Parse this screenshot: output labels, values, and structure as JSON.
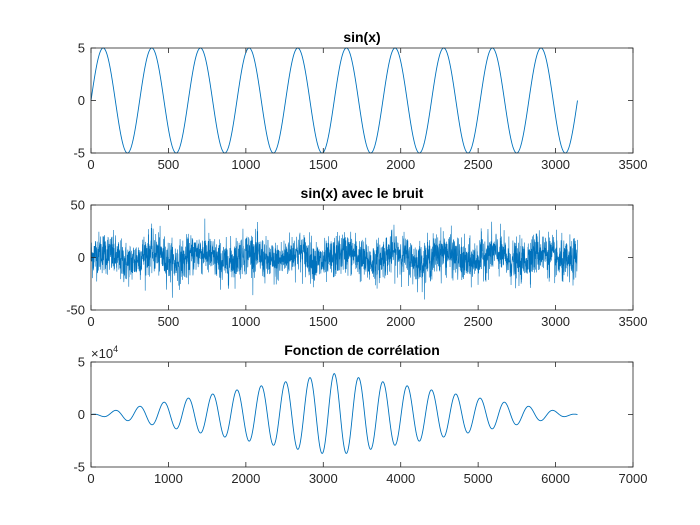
{
  "figure": {
    "background": "#ffffff",
    "axes_color": "#262626",
    "line_color": "#0072BD"
  },
  "chart_data": [
    {
      "type": "line",
      "title": "sin(x)",
      "xlabel": "",
      "ylabel": "",
      "xlim": [
        0,
        3500
      ],
      "ylim": [
        -5,
        5
      ],
      "xticks": [
        0,
        500,
        1000,
        1500,
        2000,
        2500,
        3000,
        3500
      ],
      "yticks": [
        -5,
        0,
        5
      ],
      "xtick_labels": [
        "0",
        "500",
        "1000",
        "1500",
        "2000",
        "2500",
        "3000",
        "3500"
      ],
      "ytick_labels": [
        "-5",
        "0",
        "5"
      ],
      "grid": false,
      "series": [
        {
          "kind": "sine",
          "amplitude": 5,
          "period": 314.16,
          "x_start": 0,
          "x_end": 3141.6,
          "sampled_points": 3142
        }
      ]
    },
    {
      "type": "line",
      "title": "sin(x) avec le bruit",
      "xlabel": "",
      "ylabel": "",
      "xlim": [
        0,
        3500
      ],
      "ylim": [
        -50,
        50
      ],
      "xticks": [
        0,
        500,
        1000,
        1500,
        2000,
        2500,
        3000,
        3500
      ],
      "yticks": [
        -50,
        0,
        50
      ],
      "xtick_labels": [
        "0",
        "500",
        "1000",
        "1500",
        "2000",
        "2500",
        "3000",
        "3500"
      ],
      "ytick_labels": [
        "-50",
        "0",
        "50"
      ],
      "grid": false,
      "series": [
        {
          "kind": "noisy-sine",
          "amplitude": 5,
          "period": 314.16,
          "noise_std": 10,
          "x_start": 0,
          "x_end": 3141.6,
          "sampled_points": 3142,
          "observed_range": [
            -40,
            45
          ]
        }
      ]
    },
    {
      "type": "line",
      "title": "Fonction de corrélation",
      "xlabel": "",
      "ylabel": "",
      "xlim": [
        0,
        7000
      ],
      "ylim": [
        -50000,
        50000
      ],
      "xticks": [
        0,
        1000,
        2000,
        3000,
        4000,
        5000,
        6000,
        7000
      ],
      "yticks": [
        -50000,
        0,
        50000
      ],
      "xtick_labels": [
        "0",
        "1000",
        "2000",
        "3000",
        "4000",
        "5000",
        "6000",
        "7000"
      ],
      "ytick_labels": [
        "-5",
        "0",
        "5"
      ],
      "y_exponent_base": "×10",
      "y_exponent_power": "4",
      "grid": false,
      "series": [
        {
          "kind": "autocorrelation",
          "x_start": 0,
          "x_end": 6283,
          "center": 3141.5,
          "period": 314.16,
          "peak_value": 39000,
          "peak_min": -37000
        }
      ]
    }
  ]
}
